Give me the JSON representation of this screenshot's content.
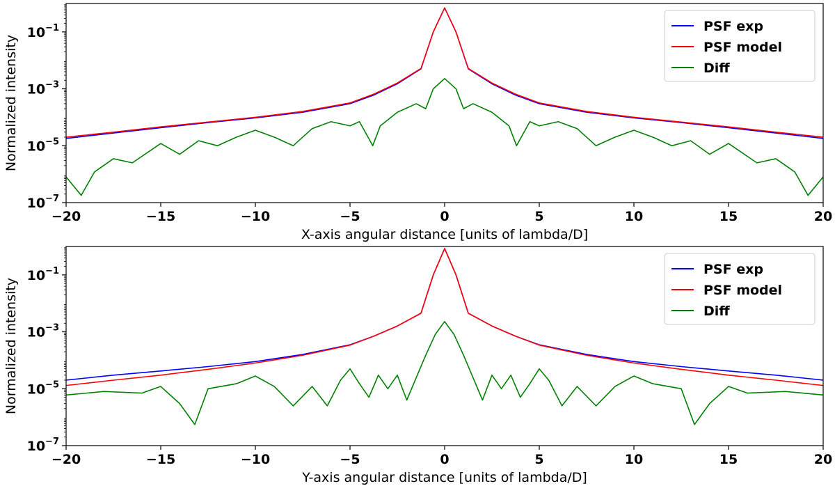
{
  "chart_data": [
    {
      "type": "line",
      "xlabel": "X-axis angular distance [units of lambda/D]",
      "ylabel": "Normalized intensity",
      "xlim": [
        -20,
        20
      ],
      "ylim": [
        1e-07,
        1
      ],
      "yscale": "log",
      "xticks": [
        -20,
        -15,
        -10,
        -5,
        0,
        5,
        10,
        15,
        20
      ],
      "xtick_labels": [
        "−20",
        "−15",
        "−10",
        "−5",
        "0",
        "5",
        "10",
        "15",
        "20"
      ],
      "yticks": [
        0.1,
        0.001,
        1e-05,
        1e-07
      ],
      "ytick_labels": [
        {
          "base": "10",
          "exp": "−1"
        },
        {
          "base": "10",
          "exp": "−3"
        },
        {
          "base": "10",
          "exp": "−5"
        },
        {
          "base": "10",
          "exp": "−7"
        }
      ],
      "grid": false,
      "legend_position": "top-right",
      "series": [
        {
          "name": "PSF exp",
          "color": "#0000ff",
          "x": [
            -20,
            -17.5,
            -15,
            -12.5,
            -10,
            -7.5,
            -5,
            -3.75,
            -2.5,
            -1.25,
            -0.6,
            0,
            0.6,
            1.25,
            2.5,
            3.75,
            5,
            7.5,
            10,
            12.5,
            15,
            17.5,
            20
          ],
          "y": [
            1.8e-05,
            2.8e-05,
            4.3e-05,
            6.5e-05,
            9.5e-05,
            0.00015,
            0.0003,
            0.0006,
            0.0015,
            0.005,
            0.1,
            0.7,
            0.1,
            0.005,
            0.0015,
            0.0006,
            0.0003,
            0.00015,
            9.5e-05,
            6.5e-05,
            4.3e-05,
            2.8e-05,
            1.8e-05
          ]
        },
        {
          "name": "PSF model",
          "color": "#ff0000",
          "x": [
            -20,
            -17.5,
            -15,
            -12.5,
            -10,
            -7.5,
            -5,
            -3.75,
            -2.5,
            -1.25,
            -0.6,
            0,
            0.6,
            1.25,
            2.5,
            3.75,
            5,
            7.5,
            10,
            12.5,
            15,
            17.5,
            20
          ],
          "y": [
            2e-05,
            3e-05,
            4.6e-05,
            6.8e-05,
            0.0001,
            0.00016,
            0.00032,
            0.00065,
            0.0016,
            0.0052,
            0.1,
            0.7,
            0.1,
            0.0052,
            0.0016,
            0.00065,
            0.00032,
            0.00016,
            0.0001,
            6.8e-05,
            4.6e-05,
            3e-05,
            2e-05
          ]
        },
        {
          "name": "Diff",
          "color": "#008000",
          "x": [
            -20,
            -19.2,
            -18.5,
            -17.5,
            -16.5,
            -15,
            -14,
            -13,
            -12,
            -11,
            -10,
            -9,
            -8,
            -7,
            -6,
            -5,
            -4.5,
            -3.8,
            -3.4,
            -2.5,
            -1.5,
            -1,
            -0.6,
            0,
            0.6,
            1,
            1.5,
            2.5,
            3.4,
            3.8,
            4.5,
            5,
            6,
            7,
            8,
            9,
            10,
            11,
            12,
            13,
            14,
            15,
            16.5,
            17.5,
            18.5,
            19.2,
            20
          ],
          "y": [
            8e-07,
            1.8e-07,
            1.2e-06,
            3.5e-06,
            2.5e-06,
            1.2e-05,
            5e-06,
            1.5e-05,
            1e-05,
            2e-05,
            3.5e-05,
            2e-05,
            1e-05,
            4e-05,
            7e-05,
            5e-05,
            7e-05,
            1e-05,
            5e-05,
            0.00015,
            0.0003,
            0.0002,
            0.001,
            0.0023,
            0.001,
            0.0002,
            0.0003,
            0.00015,
            5e-05,
            1e-05,
            7e-05,
            5e-05,
            7e-05,
            4e-05,
            1e-05,
            2e-05,
            3.5e-05,
            2e-05,
            1e-05,
            1.5e-05,
            5e-06,
            1.2e-05,
            2.5e-06,
            3.5e-06,
            1.2e-06,
            1.8e-07,
            8e-07
          ]
        }
      ]
    },
    {
      "type": "line",
      "xlabel": "Y-axis angular distance [units of lambda/D]",
      "ylabel": "Normalized intensity",
      "xlim": [
        -20,
        20
      ],
      "ylim": [
        1e-07,
        1
      ],
      "yscale": "log",
      "xticks": [
        -20,
        -15,
        -10,
        -5,
        0,
        5,
        10,
        15,
        20
      ],
      "xtick_labels": [
        "−20",
        "−15",
        "−10",
        "−5",
        "0",
        "5",
        "10",
        "15",
        "20"
      ],
      "yticks": [
        0.1,
        0.001,
        1e-05,
        1e-07
      ],
      "ytick_labels": [
        {
          "base": "10",
          "exp": "−1"
        },
        {
          "base": "10",
          "exp": "−3"
        },
        {
          "base": "10",
          "exp": "−5"
        },
        {
          "base": "10",
          "exp": "−7"
        }
      ],
      "grid": false,
      "legend_position": "top-right",
      "series": [
        {
          "name": "PSF exp",
          "color": "#0000ff",
          "x": [
            -20,
            -17.5,
            -15,
            -12.5,
            -10,
            -7.5,
            -5,
            -3.75,
            -2.5,
            -1.25,
            -0.6,
            0,
            0.6,
            1.25,
            2.5,
            3.75,
            5,
            7.5,
            10,
            12.5,
            15,
            17.5,
            20
          ],
          "y": [
            2e-05,
            3e-05,
            4.2e-05,
            6e-05,
            9e-05,
            0.00016,
            0.00035,
            0.0007,
            0.0016,
            0.0045,
            0.1,
            0.85,
            0.1,
            0.0045,
            0.0016,
            0.0007,
            0.00035,
            0.00016,
            9e-05,
            6e-05,
            4.2e-05,
            3e-05,
            2e-05
          ]
        },
        {
          "name": "PSF model",
          "color": "#ff0000",
          "x": [
            -20,
            -17.5,
            -15,
            -12.5,
            -10,
            -7.5,
            -5,
            -3.75,
            -2.5,
            -1.25,
            -0.6,
            0,
            0.6,
            1.25,
            2.5,
            3.75,
            5,
            7.5,
            10,
            12.5,
            15,
            17.5,
            20
          ],
          "y": [
            1.3e-05,
            2e-05,
            3e-05,
            4.8e-05,
            8e-05,
            0.00015,
            0.00034,
            0.0007,
            0.0016,
            0.0045,
            0.1,
            0.85,
            0.1,
            0.0045,
            0.0016,
            0.0007,
            0.00034,
            0.00015,
            8e-05,
            4.8e-05,
            3e-05,
            2e-05,
            1.3e-05
          ]
        },
        {
          "name": "Diff",
          "color": "#008000",
          "x": [
            -20,
            -18,
            -16,
            -15,
            -14,
            -13.2,
            -12.5,
            -11,
            -10,
            -9,
            -8,
            -7,
            -6.2,
            -5.5,
            -5,
            -4.5,
            -4,
            -3.5,
            -3,
            -2.5,
            -2,
            -1,
            -0.5,
            0,
            0.5,
            1,
            2,
            2.5,
            3,
            3.5,
            4,
            4.5,
            5,
            5.5,
            6.2,
            7,
            8,
            9,
            10,
            11,
            12.5,
            13.2,
            14,
            15,
            16,
            18,
            20
          ],
          "y": [
            6e-06,
            8e-06,
            7e-06,
            1.2e-05,
            3e-06,
            5.5e-07,
            1e-05,
            1.5e-05,
            2.8e-05,
            1.2e-05,
            2.5e-06,
            1.2e-05,
            2.5e-06,
            2e-05,
            5e-05,
            1.5e-05,
            5e-06,
            3e-05,
            1e-05,
            3e-05,
            4e-06,
            0.00015,
            0.0008,
            0.0023,
            0.0008,
            0.00015,
            4e-06,
            3e-05,
            1e-05,
            3e-05,
            5e-06,
            1.5e-05,
            5e-05,
            2e-05,
            2.5e-06,
            1.2e-05,
            2.5e-06,
            1.2e-05,
            2.8e-05,
            1.5e-05,
            1e-05,
            5.5e-07,
            3e-06,
            1.2e-05,
            7e-06,
            8e-06,
            6e-06
          ]
        }
      ]
    }
  ]
}
